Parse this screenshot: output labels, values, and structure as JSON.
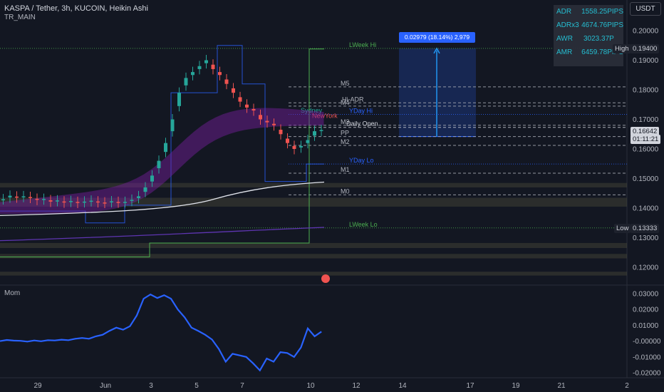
{
  "header": {
    "title": "KASPA / Tether, 3h, KUCOIN, Heikin Ashi",
    "indicator": "TR_MAIN",
    "sub_indicator": "Mom"
  },
  "currency_button": "USDT",
  "stats": [
    {
      "key": "ADR",
      "value": "1558.25PIPS"
    },
    {
      "key": "ADRx3",
      "value": "4674.76PIPS"
    },
    {
      "key": "AWR",
      "value": "3023.37P"
    },
    {
      "key": "AMR",
      "value": "6459.78PIPS"
    }
  ],
  "measure_tooltip": "0.02979 (18.14%) 2,979",
  "price_tags": {
    "high_label": "High",
    "high_value": "0.19400",
    "last_value": "0.16642",
    "countdown": "01:11:21",
    "low_label": "Low",
    "low_value": "0.13333"
  },
  "levels": [
    {
      "label": "LWeek Hi",
      "price": 0.194,
      "color": "#4caf50"
    },
    {
      "label": "M5",
      "price": 0.181,
      "color": "#b2b5be"
    },
    {
      "label": "Hi-ADR",
      "price": 0.1756,
      "color": "#b2b5be"
    },
    {
      "label": "M4",
      "price": 0.1745,
      "color": "#b2b5be"
    },
    {
      "label": "YDay Hi",
      "price": 0.1717,
      "color": "#2962ff"
    },
    {
      "label": "Sydney",
      "price": 0.1718,
      "color": "#26a69a"
    },
    {
      "label": "NewYork",
      "price": 0.17,
      "color": "#ef5350"
    },
    {
      "label": "M3",
      "price": 0.168,
      "color": "#b2b5be"
    },
    {
      "label": "Daily Open",
      "price": 0.1673,
      "color": "#d1d4dc"
    },
    {
      "label": "PP",
      "price": 0.1642,
      "color": "#b2b5be"
    },
    {
      "label": "M2",
      "price": 0.1612,
      "color": "#b2b5be"
    },
    {
      "label": "YDay Lo",
      "price": 0.1549,
      "color": "#2962ff"
    },
    {
      "label": "M1",
      "price": 0.1518,
      "color": "#b2b5be"
    },
    {
      "label": "M0",
      "price": 0.1445,
      "color": "#b2b5be"
    },
    {
      "label": "LWeek Lo",
      "price": 0.1333,
      "color": "#4caf50"
    }
  ],
  "chart_data": [
    {
      "type": "candlestick",
      "price_axis": {
        "ticks": [
          "0.20000",
          "0.19000",
          "0.18000",
          "0.17000",
          "0.16000",
          "0.15000",
          "0.14000",
          "0.13000",
          "0.12000"
        ],
        "range": [
          0.1155,
          0.2035
        ]
      },
      "time_axis": {
        "ticks": [
          "29",
          "Jun",
          "3",
          "5",
          "7",
          "10",
          "12",
          "14",
          "17",
          "19",
          "21",
          "2"
        ]
      },
      "close_path": [
        0.143,
        0.1442,
        0.1436,
        0.144,
        0.1435,
        0.1428,
        0.1431,
        0.1422,
        0.1426,
        0.1419,
        0.1424,
        0.1418,
        0.1422,
        0.1425,
        0.142,
        0.1418,
        0.1423,
        0.1419,
        0.1421,
        0.1428,
        0.144,
        0.147,
        0.151,
        0.156,
        0.162,
        0.17,
        0.179,
        0.184,
        0.186,
        0.188,
        0.19,
        0.187,
        0.185,
        0.182,
        0.179,
        0.176,
        0.174,
        0.173,
        0.17,
        0.169,
        0.168,
        0.165,
        0.162,
        0.16,
        0.161,
        0.163,
        0.166,
        0.1664
      ],
      "measure": {
        "from": 0.1642,
        "to": 0.194,
        "change": "0.02979",
        "percent": "18.14%"
      }
    },
    {
      "type": "line",
      "name": "Mom",
      "y_axis": {
        "ticks": [
          "0.03000",
          "0.02000",
          "0.01000",
          "-0.00000",
          "-0.01000",
          "-0.02000"
        ],
        "range": [
          -0.0215,
          0.0305
        ]
      },
      "values": [
        0.0,
        0.0007,
        0.0003,
        0.0002,
        -0.0003,
        0.0004,
        -0.0001,
        0.0006,
        0.0004,
        0.0009,
        0.0006,
        0.0015,
        0.002,
        0.0015,
        0.003,
        0.004,
        0.0065,
        0.0085,
        0.0072,
        0.0094,
        0.0162,
        0.0268,
        0.0295,
        0.0272,
        0.029,
        0.0268,
        0.02,
        0.015,
        0.0085,
        0.0064,
        0.004,
        0.001,
        -0.005,
        -0.013,
        -0.008,
        -0.009,
        -0.01,
        -0.014,
        -0.0185,
        -0.011,
        -0.013,
        -0.007,
        -0.0075,
        -0.01,
        -0.004,
        0.008,
        0.003,
        0.006
      ]
    }
  ]
}
